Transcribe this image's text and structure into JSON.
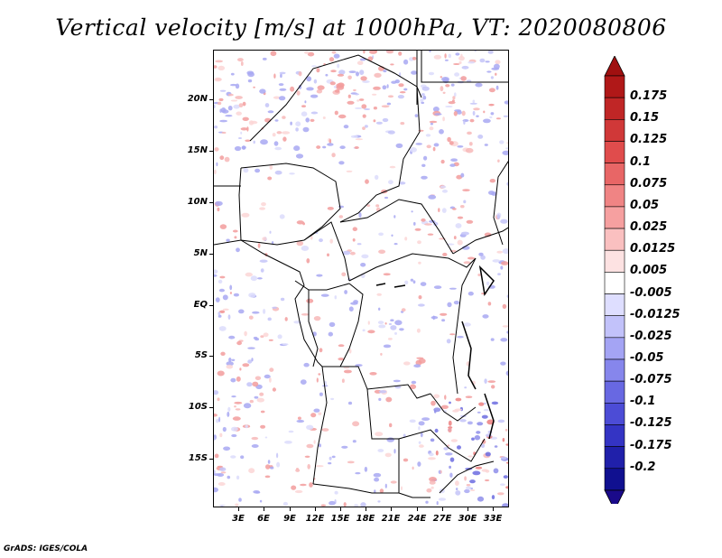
{
  "title": "Vertical velocity [m/s] at 1000hPa, VT: 2020080806",
  "footer": "GrADS: IGES/COLA",
  "lat_labels": [
    "20N",
    "15N",
    "10N",
    "5N",
    "EQ",
    "5S",
    "10S",
    "15S"
  ],
  "lon_labels": [
    "3E",
    "6E",
    "9E",
    "12E",
    "15E",
    "18E",
    "21E",
    "24E",
    "27E",
    "30E",
    "33E"
  ],
  "legend": {
    "labels": [
      "0.175",
      "0.15",
      "0.125",
      "0.1",
      "0.075",
      "0.05",
      "0.025",
      "0.0125",
      "0.005",
      "-0.005",
      "-0.0125",
      "-0.025",
      "-0.05",
      "-0.075",
      "-0.1",
      "-0.125",
      "-0.175",
      "-0.2"
    ],
    "colors": [
      "#b01818",
      "#c02626",
      "#d03838",
      "#e04c4c",
      "#e86666",
      "#f08484",
      "#f6a0a0",
      "#fac0c0",
      "#fde2e2",
      "#ffffff",
      "#dedeff",
      "#c2c2fa",
      "#a4a4f4",
      "#8686ec",
      "#6868e2",
      "#4c4cd6",
      "#3434c4",
      "#2020aa",
      "#101090"
    ],
    "top_arrow_color": "#a01010",
    "bottom_arrow_color": "#1a0a8a"
  }
}
